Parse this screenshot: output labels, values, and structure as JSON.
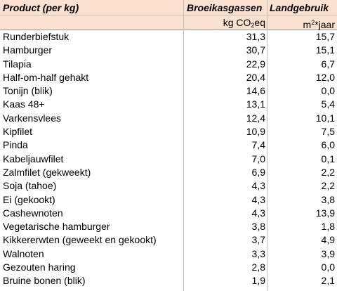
{
  "header": {
    "col_product": "Product (per kg)",
    "col_ghg": "Broeikasgassen",
    "col_land": "Landgebruik",
    "unit_ghg_pre": "kg CO",
    "unit_ghg_sub": "2",
    "unit_ghg_post": "eq",
    "unit_land_pre": "m",
    "unit_land_sup": "2",
    "unit_land_post": "*jaar"
  },
  "rows": [
    {
      "product": "Runderbiefstuk",
      "ghg": "31,3",
      "land": "15,7"
    },
    {
      "product": "Hamburger",
      "ghg": "30,7",
      "land": "15,1"
    },
    {
      "product": "Tilapia",
      "ghg": "22,9",
      "land": "6,7"
    },
    {
      "product": "Half-om-half gehakt",
      "ghg": "20,4",
      "land": "12,0"
    },
    {
      "product": "Tonijn (blik)",
      "ghg": "14,6",
      "land": "0,0"
    },
    {
      "product": "Kaas 48+",
      "ghg": "13,1",
      "land": "5,4"
    },
    {
      "product": "Varkensvlees",
      "ghg": "12,4",
      "land": "10,1"
    },
    {
      "product": "Kipfilet",
      "ghg": "10,9",
      "land": "7,5"
    },
    {
      "product": "Pinda",
      "ghg": "7,4",
      "land": "6,0"
    },
    {
      "product": "Kabeljauwfilet",
      "ghg": "7,0",
      "land": "0,1"
    },
    {
      "product": "Zalmfilet (gekweekt)",
      "ghg": "6,9",
      "land": "2,2"
    },
    {
      "product": "Soja (tahoe)",
      "ghg": "4,3",
      "land": "2,2"
    },
    {
      "product": "Ei (gekookt)",
      "ghg": "4,3",
      "land": "3,8"
    },
    {
      "product": "Cashewnoten",
      "ghg": "4,3",
      "land": "13,9"
    },
    {
      "product": "Vegetarische hamburger",
      "ghg": "3,8",
      "land": "1,8"
    },
    {
      "product": "Kikkererwten (geweekt en gekookt)",
      "ghg": "3,7",
      "land": "4,9"
    },
    {
      "product": "Walnoten",
      "ghg": "3,3",
      "land": "3,9"
    },
    {
      "product": "Gezouten haring",
      "ghg": "2,8",
      "land": "0,0"
    },
    {
      "product": "Bruine bonen (blik)",
      "ghg": "1,9",
      "land": "2,1"
    }
  ]
}
